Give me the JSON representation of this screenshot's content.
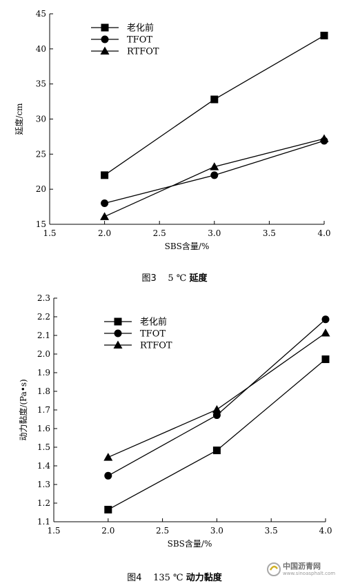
{
  "chart_data": [
    {
      "type": "line",
      "title": "",
      "caption": {
        "prefix": "图3",
        "temp": "5 ℃",
        "name": "延度"
      },
      "xlabel": "SBS含量/%",
      "ylabel": "延度/cm",
      "xlim": [
        1.5,
        4.0
      ],
      "ylim": [
        15,
        45
      ],
      "xticks": [
        "1.5",
        "2.0",
        "2.5",
        "3.0",
        "3.5",
        "4.0"
      ],
      "yticks": [
        "15",
        "20",
        "25",
        "30",
        "35",
        "40",
        "45"
      ],
      "legend_position": "top-left",
      "x": [
        2.0,
        3.0,
        4.0
      ],
      "series": [
        {
          "name": "老化前",
          "marker": "square",
          "values": [
            22.0,
            32.8,
            41.9
          ]
        },
        {
          "name": "TFOT",
          "marker": "circle",
          "values": [
            18.0,
            22.0,
            26.9
          ]
        },
        {
          "name": "RTFOT",
          "marker": "triangle",
          "values": [
            16.1,
            23.2,
            27.2
          ]
        }
      ]
    },
    {
      "type": "line",
      "title": "",
      "caption": {
        "prefix": "图4",
        "temp": "135 ℃",
        "name": "动力黏度"
      },
      "xlabel": "SBS含量/%",
      "ylabel": "动力黏度/(Pa•s)",
      "xlim": [
        1.5,
        4.0
      ],
      "ylim": [
        1.1,
        2.3
      ],
      "xticks": [
        "1.5",
        "2.0",
        "2.5",
        "3.0",
        "3.5",
        "4.0"
      ],
      "yticks": [
        "1.1",
        "1.2",
        "1.3",
        "1.4",
        "1.5",
        "1.6",
        "1.7",
        "1.8",
        "1.9",
        "2.0",
        "2.1",
        "2.2",
        "2.3"
      ],
      "legend_position": "top-left",
      "x": [
        2.0,
        3.0,
        4.0
      ],
      "series": [
        {
          "name": "老化前",
          "marker": "square",
          "values": [
            1.165,
            1.483,
            1.972
          ]
        },
        {
          "name": "TFOT",
          "marker": "circle",
          "values": [
            1.347,
            1.672,
            2.186
          ]
        },
        {
          "name": "RTFOT",
          "marker": "triangle",
          "values": [
            1.446,
            1.702,
            2.113
          ]
        }
      ]
    }
  ],
  "watermark": {
    "text": "中国沥青网",
    "url": "www.sinoasphalt.com"
  }
}
